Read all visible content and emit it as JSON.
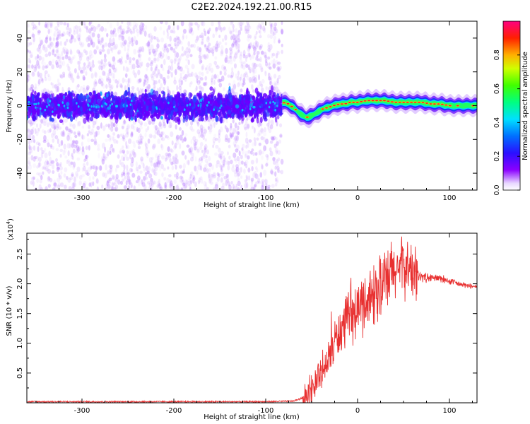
{
  "figure_title": "C2E2.2024.192.21.00.R15",
  "colors": {
    "snr_line": "#e83030",
    "axes": "#000000"
  },
  "chart_data": [
    {
      "type": "heatmap",
      "title": "C2E2.2024.192.21.00.R15",
      "xlabel": "Height of straight line (km)",
      "ylabel": "Frequency (Hz)",
      "xlim": [
        -360,
        130
      ],
      "ylim": [
        -50,
        50
      ],
      "xticks": [
        -300,
        -200,
        -100,
        0,
        100
      ],
      "xtick_labels": [
        "-300",
        "-200",
        "-100",
        "0",
        "100"
      ],
      "yticks": [
        -40,
        -20,
        0,
        20,
        40
      ],
      "ytick_labels": [
        "-40",
        "-20",
        "0",
        "20",
        "40"
      ],
      "colorbar": {
        "label": "Normalized spectral amplitude",
        "range": [
          0,
          1
        ],
        "ticks": [
          0.0,
          0.2,
          0.4,
          0.6,
          0.8
        ],
        "tick_labels": [
          "0.0",
          "0.2",
          "0.4",
          "0.6",
          "0.8"
        ]
      },
      "ridge": {
        "description_values": "dominant frequency ridge (Hz) vs height (km)",
        "x": [
          -82,
          -75,
          -68,
          -62,
          -56,
          -50,
          -44,
          -38,
          -32,
          -26,
          -20,
          -14,
          -8,
          0,
          10,
          20,
          30,
          40,
          50,
          60,
          70,
          80,
          90,
          100,
          110,
          120,
          130
        ],
        "y": [
          2,
          1,
          -2,
          -5,
          -7,
          -6,
          -4,
          -2,
          -1,
          0,
          1,
          1,
          2,
          2,
          3,
          3,
          3,
          2,
          2,
          2,
          2,
          1,
          1,
          0,
          0,
          0,
          0
        ]
      },
      "noise_region_upper_x": -82
    },
    {
      "type": "line",
      "xlabel": "Height of straight line (km)",
      "ylabel": "SNR (10 * v/v)",
      "y_scale_label": "(x10",
      "y_scale_exponent": "4",
      "xlim": [
        -360,
        130
      ],
      "ylim": [
        0,
        2.85
      ],
      "xticks": [
        -300,
        -200,
        -100,
        0,
        100
      ],
      "xtick_labels": [
        "-300",
        "-200",
        "-100",
        "0",
        "100"
      ],
      "yticks": [
        0.5,
        1.0,
        1.5,
        2.0,
        2.5
      ],
      "ytick_labels": [
        "0.5",
        "1.0",
        "1.5",
        "2.0",
        "2.5"
      ],
      "series": [
        {
          "name": "SNR",
          "x": [
            -360,
            -300,
            -200,
            -100,
            -70,
            -60,
            -55,
            -50,
            -45,
            -40,
            -35,
            -30,
            -25,
            -20,
            -15,
            -10,
            -5,
            0,
            5,
            10,
            15,
            20,
            25,
            30,
            35,
            40,
            45,
            50,
            55,
            60,
            70,
            80,
            90,
            100,
            110,
            120,
            130
          ],
          "y": [
            0.02,
            0.02,
            0.02,
            0.02,
            0.03,
            0.08,
            0.15,
            0.25,
            0.4,
            0.55,
            0.62,
            0.85,
            1.05,
            1.2,
            1.32,
            1.42,
            1.5,
            1.6,
            1.7,
            1.78,
            1.85,
            1.92,
            2.0,
            2.05,
            2.15,
            2.25,
            2.3,
            2.35,
            2.3,
            2.22,
            2.12,
            2.1,
            2.1,
            2.05,
            2.0,
            1.97,
            1.95
          ]
        }
      ]
    }
  ]
}
